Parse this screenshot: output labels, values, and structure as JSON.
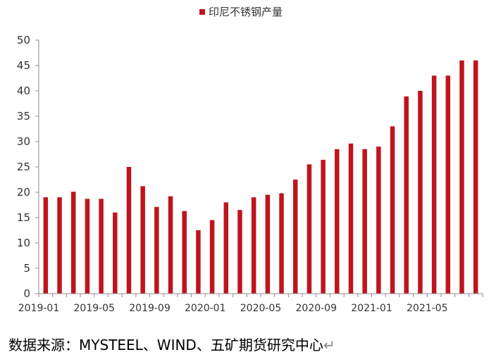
{
  "chart_data": {
    "type": "bar",
    "title": "",
    "legend": {
      "entries": [
        "印尼不锈钢产量"
      ],
      "position": "top"
    },
    "series": [
      {
        "name": "印尼不锈钢产量",
        "color": "#C0141C",
        "values": [
          19,
          19,
          20.1,
          18.7,
          18.7,
          16,
          25,
          21.2,
          17.1,
          19.2,
          16.3,
          12.5,
          14.5,
          18,
          16.5,
          19,
          19.5,
          19.8,
          22.5,
          25.5,
          26.4,
          28.5,
          29.6,
          28.5,
          29,
          33,
          38.9,
          40,
          43,
          43,
          46,
          46
        ]
      }
    ],
    "categories": [
      "2019-01",
      "2019-02",
      "2019-03",
      "2019-04",
      "2019-05",
      "2019-06",
      "2019-07",
      "2019-08",
      "2019-09",
      "2019-10",
      "2019-11",
      "2019-12",
      "2020-01",
      "2020-02",
      "2020-03",
      "2020-04",
      "2020-05",
      "2020-06",
      "2020-07",
      "2020-08",
      "2020-09",
      "2020-10",
      "2020-11",
      "2020-12",
      "2021-01",
      "2021-02",
      "2021-03",
      "2021-04",
      "2021-05",
      "2021-06",
      "2021-07",
      "2021-08"
    ],
    "x_tick_labels": [
      "2019-01",
      "2019-05",
      "2019-09",
      "2020-01",
      "2020-05",
      "2020-09",
      "2021-01",
      "2021-05"
    ],
    "y_ticks": [
      0,
      5,
      10,
      15,
      20,
      25,
      30,
      35,
      40,
      45,
      50
    ],
    "ylim": [
      0,
      50
    ],
    "xlabel": "",
    "ylabel": "",
    "grid": false
  },
  "source_text": "数据来源：MYSTEEL、WIND、五矿期货研究中心"
}
